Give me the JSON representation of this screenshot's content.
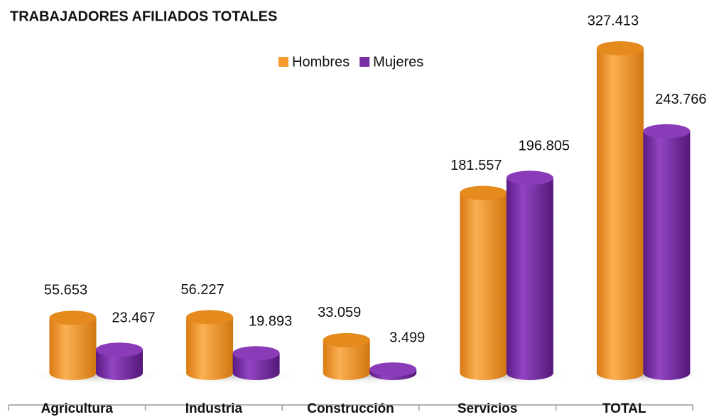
{
  "chart_data": {
    "type": "bar3d",
    "title": "TRABAJADORES AFILIADOS TOTALES",
    "categories": [
      "Agricultura",
      "Industria",
      "Construcción",
      "Servicios",
      "TOTAL"
    ],
    "series": [
      {
        "name": "Hombres",
        "color": "#f59a2e",
        "values": [
          55653,
          56227,
          33059,
          181557,
          327413
        ],
        "value_labels": [
          "55.653",
          "56.227",
          "33.059",
          "181.557",
          "327.413"
        ]
      },
      {
        "name": "Mujeres",
        "color": "#7a2ea6",
        "values": [
          23467,
          19893,
          3499,
          196805,
          243766
        ],
        "value_labels": [
          "23.467",
          "19.893",
          "3.499",
          "196.805",
          "243.766"
        ]
      }
    ],
    "legend": "top"
  }
}
